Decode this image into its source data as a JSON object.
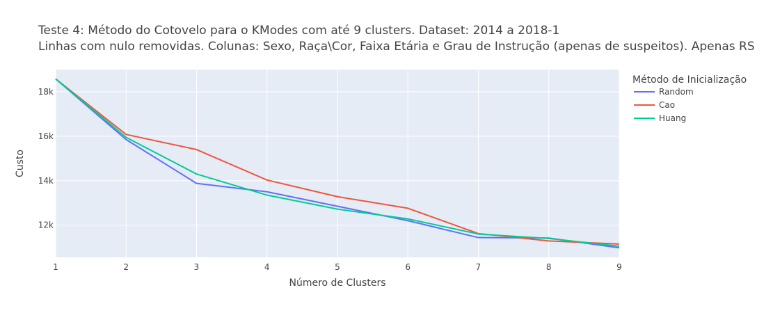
{
  "chart_data": {
    "type": "line",
    "title_line1": "Teste 4: Método do Cotovelo para o KModes com até 9 clusters. Dataset: 2014 a 2018-1",
    "title_line2": "Linhas com nulo removidas. Colunas: Sexo, Raça\\Cor, Faixa Etária e Grau de Instrução (apenas de suspeitos). Apenas RS",
    "xlabel": "Número de Clusters",
    "ylabel": "Custo",
    "x": [
      1,
      2,
      3,
      4,
      5,
      6,
      7,
      8,
      9
    ],
    "xlim": [
      1,
      9
    ],
    "ylim": [
      10550,
      19000
    ],
    "x_ticks": [
      "1",
      "2",
      "3",
      "4",
      "5",
      "6",
      "7",
      "8",
      "9"
    ],
    "y_ticks": [
      {
        "value": 12000,
        "label": "12k"
      },
      {
        "value": 14000,
        "label": "14k"
      },
      {
        "value": 16000,
        "label": "16k"
      },
      {
        "value": 18000,
        "label": "18k"
      }
    ],
    "legend_title": "Método de Inicialização",
    "legend_position": "right",
    "grid": true,
    "series": [
      {
        "name": "Random",
        "color": "#636efa",
        "values": [
          18580,
          15850,
          13880,
          13500,
          12850,
          12200,
          11440,
          11420,
          10980
        ]
      },
      {
        "name": "Cao",
        "color": "#ef553b",
        "values": [
          18580,
          16080,
          15400,
          14030,
          13280,
          12760,
          11620,
          11290,
          11150
        ]
      },
      {
        "name": "Huang",
        "color": "#00cc96",
        "values": [
          18580,
          15950,
          14300,
          13350,
          12720,
          12280,
          11600,
          11400,
          11050
        ]
      }
    ]
  }
}
